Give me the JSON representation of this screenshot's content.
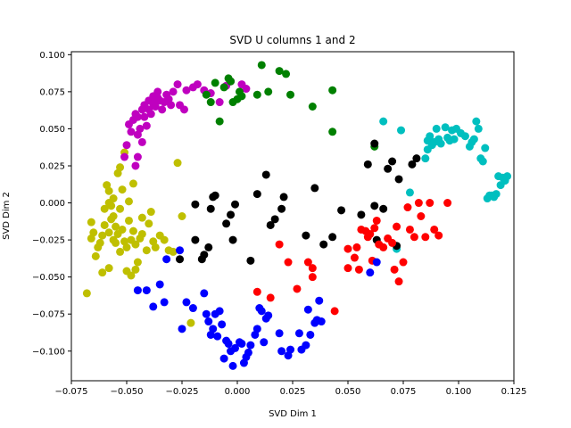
{
  "chart_data": {
    "type": "scatter",
    "title": "SVD U columns 1 and 2",
    "xlabel": "SVD Dim 1",
    "ylabel": "SVD Dim 2",
    "xlim": [
      -0.075,
      0.125
    ],
    "ylim": [
      -0.12,
      0.102
    ],
    "x_ticks": [
      -0.075,
      -0.05,
      -0.025,
      0.0,
      0.025,
      0.05,
      0.075,
      0.1,
      0.125
    ],
    "x_tick_labels": [
      "−0.075",
      "−0.050",
      "−0.025",
      "0.000",
      "0.025",
      "0.050",
      "0.075",
      "0.100",
      "0.125"
    ],
    "y_ticks": [
      -0.1,
      -0.075,
      -0.05,
      -0.025,
      0.0,
      0.025,
      0.05,
      0.075,
      0.1
    ],
    "y_tick_labels": [
      "−0.100",
      "−0.075",
      "−0.050",
      "−0.025",
      "0.000",
      "0.025",
      "0.050",
      "0.075",
      "0.100"
    ],
    "grid": false,
    "series": [
      {
        "color": "#bfbf00",
        "points": [
          [
            -0.068,
            -0.061
          ],
          [
            -0.066,
            -0.024
          ],
          [
            -0.066,
            -0.013
          ],
          [
            -0.065,
            -0.02
          ],
          [
            -0.064,
            -0.036
          ],
          [
            -0.063,
            -0.03
          ],
          [
            -0.062,
            -0.027
          ],
          [
            -0.061,
            -0.022
          ],
          [
            -0.061,
            -0.047
          ],
          [
            -0.06,
            -0.015
          ],
          [
            -0.06,
            -0.004
          ],
          [
            -0.059,
            0.012
          ],
          [
            -0.058,
            -0.02
          ],
          [
            -0.058,
            0.008
          ],
          [
            -0.058,
            0.0
          ],
          [
            -0.057,
            -0.011
          ],
          [
            -0.057,
            -0.002
          ],
          [
            -0.056,
            -0.025
          ],
          [
            -0.056,
            -0.009
          ],
          [
            -0.056,
            0.003
          ],
          [
            -0.055,
            -0.016
          ],
          [
            -0.055,
            -0.027
          ],
          [
            -0.054,
            -0.021
          ],
          [
            -0.054,
            0.02
          ],
          [
            -0.053,
            0.024
          ],
          [
            -0.053,
            -0.004
          ],
          [
            -0.053,
            -0.033
          ],
          [
            -0.052,
            -0.018
          ],
          [
            -0.052,
            0.009
          ],
          [
            -0.051,
            0.034
          ],
          [
            -0.051,
            -0.026
          ],
          [
            -0.05,
            -0.03
          ],
          [
            -0.05,
            -0.046
          ],
          [
            -0.049,
            -0.012
          ],
          [
            -0.049,
            0.001
          ],
          [
            -0.048,
            -0.049
          ],
          [
            -0.048,
            -0.025
          ],
          [
            -0.047,
            0.013
          ],
          [
            -0.047,
            -0.019
          ],
          [
            -0.046,
            -0.045
          ],
          [
            -0.046,
            -0.028
          ],
          [
            -0.045,
            -0.04
          ],
          [
            -0.044,
            -0.024
          ],
          [
            -0.043,
            -0.021
          ],
          [
            -0.043,
            -0.01
          ],
          [
            -0.041,
            -0.032
          ],
          [
            -0.04,
            -0.014
          ],
          [
            -0.039,
            -0.006
          ],
          [
            -0.038,
            -0.026
          ],
          [
            -0.037,
            -0.03
          ],
          [
            -0.035,
            -0.022
          ],
          [
            -0.033,
            -0.025
          ],
          [
            -0.031,
            -0.032
          ],
          [
            -0.029,
            -0.033
          ],
          [
            -0.027,
            0.027
          ],
          [
            -0.021,
            -0.081
          ],
          [
            -0.025,
            -0.009
          ],
          [
            -0.058,
            -0.044
          ]
        ]
      },
      {
        "color": "#bf00bf",
        "points": [
          [
            -0.051,
            0.031
          ],
          [
            -0.05,
            0.039
          ],
          [
            -0.049,
            0.053
          ],
          [
            -0.048,
            0.048
          ],
          [
            -0.047,
            0.056
          ],
          [
            -0.046,
            0.06
          ],
          [
            -0.045,
            0.058
          ],
          [
            -0.045,
            0.046
          ],
          [
            -0.044,
            0.05
          ],
          [
            -0.043,
            0.063
          ],
          [
            -0.043,
            0.041
          ],
          [
            -0.042,
            0.066
          ],
          [
            -0.042,
            0.058
          ],
          [
            -0.041,
            0.052
          ],
          [
            -0.04,
            0.069
          ],
          [
            -0.04,
            0.063
          ],
          [
            -0.039,
            0.06
          ],
          [
            -0.038,
            0.072
          ],
          [
            -0.038,
            0.067
          ],
          [
            -0.037,
            0.065
          ],
          [
            -0.036,
            0.071
          ],
          [
            -0.036,
            0.075
          ],
          [
            -0.035,
            0.069
          ],
          [
            -0.034,
            0.063
          ],
          [
            -0.033,
            0.068
          ],
          [
            -0.032,
            0.073
          ],
          [
            -0.031,
            0.07
          ],
          [
            -0.03,
            0.066
          ],
          [
            -0.029,
            0.075
          ],
          [
            -0.027,
            0.08
          ],
          [
            -0.026,
            0.066
          ],
          [
            -0.024,
            0.063
          ],
          [
            -0.023,
            0.076
          ],
          [
            -0.02,
            0.078
          ],
          [
            -0.018,
            0.08
          ],
          [
            -0.015,
            0.076
          ],
          [
            -0.012,
            0.074
          ],
          [
            -0.008,
            0.068
          ],
          [
            -0.005,
            0.079
          ],
          [
            -0.003,
            0.082
          ],
          [
            0.002,
            0.08
          ],
          [
            0.004,
            0.077
          ],
          [
            -0.045,
            0.031
          ],
          [
            -0.046,
            0.025
          ]
        ]
      },
      {
        "color": "#008000",
        "points": [
          [
            -0.014,
            0.073
          ],
          [
            -0.012,
            0.068
          ],
          [
            -0.01,
            0.081
          ],
          [
            -0.008,
            0.055
          ],
          [
            -0.006,
            0.078
          ],
          [
            -0.004,
            0.084
          ],
          [
            -0.003,
            0.082
          ],
          [
            -0.002,
            0.068
          ],
          [
            0.0,
            0.07
          ],
          [
            0.001,
            0.075
          ],
          [
            0.002,
            0.072
          ],
          [
            0.009,
            0.073
          ],
          [
            0.011,
            0.093
          ],
          [
            0.014,
            0.075
          ],
          [
            0.019,
            0.089
          ],
          [
            0.022,
            0.087
          ],
          [
            0.024,
            0.073
          ],
          [
            0.034,
            0.065
          ],
          [
            0.043,
            0.076
          ],
          [
            0.043,
            0.048
          ],
          [
            0.062,
            0.038
          ]
        ]
      },
      {
        "color": "#00bfbf",
        "points": [
          [
            0.066,
            0.055
          ],
          [
            0.074,
            0.049
          ],
          [
            0.072,
            -0.031
          ],
          [
            0.078,
            0.007
          ],
          [
            0.085,
            0.03
          ],
          [
            0.086,
            0.036
          ],
          [
            0.086,
            0.042
          ],
          [
            0.087,
            0.045
          ],
          [
            0.088,
            0.039
          ],
          [
            0.089,
            0.041
          ],
          [
            0.09,
            0.05
          ],
          [
            0.091,
            0.043
          ],
          [
            0.092,
            0.04
          ],
          [
            0.094,
            0.051
          ],
          [
            0.095,
            0.044
          ],
          [
            0.096,
            0.042
          ],
          [
            0.097,
            0.049
          ],
          [
            0.098,
            0.043
          ],
          [
            0.099,
            0.05
          ],
          [
            0.101,
            0.047
          ],
          [
            0.103,
            0.045
          ],
          [
            0.105,
            0.038
          ],
          [
            0.106,
            0.041
          ],
          [
            0.107,
            0.043
          ],
          [
            0.108,
            0.055
          ],
          [
            0.109,
            0.05
          ],
          [
            0.11,
            0.03
          ],
          [
            0.111,
            0.028
          ],
          [
            0.112,
            0.037
          ],
          [
            0.113,
            0.003
          ],
          [
            0.114,
            0.005
          ],
          [
            0.115,
            0.005
          ],
          [
            0.116,
            0.004
          ],
          [
            0.117,
            0.006
          ],
          [
            0.118,
            0.018
          ],
          [
            0.119,
            0.012
          ],
          [
            0.12,
            0.017
          ],
          [
            0.121,
            0.015
          ],
          [
            0.122,
            0.018
          ]
        ]
      },
      {
        "color": "#000000",
        "points": [
          [
            -0.026,
            -0.038
          ],
          [
            -0.019,
            -0.001
          ],
          [
            -0.019,
            -0.025
          ],
          [
            -0.016,
            -0.038
          ],
          [
            -0.015,
            -0.035
          ],
          [
            -0.013,
            -0.03
          ],
          [
            -0.012,
            -0.004
          ],
          [
            -0.011,
            0.004
          ],
          [
            -0.01,
            0.005
          ],
          [
            -0.005,
            -0.014
          ],
          [
            -0.003,
            -0.008
          ],
          [
            -0.002,
            -0.025
          ],
          [
            -0.001,
            -0.001
          ],
          [
            0.006,
            -0.039
          ],
          [
            0.009,
            0.006
          ],
          [
            0.013,
            0.019
          ],
          [
            0.015,
            -0.015
          ],
          [
            0.017,
            -0.011
          ],
          [
            0.02,
            -0.004
          ],
          [
            0.021,
            0.004
          ],
          [
            0.031,
            -0.022
          ],
          [
            0.035,
            0.01
          ],
          [
            0.039,
            -0.028
          ],
          [
            0.043,
            -0.023
          ],
          [
            0.047,
            -0.005
          ],
          [
            0.056,
            -0.008
          ],
          [
            0.059,
            0.026
          ],
          [
            0.062,
            0.04
          ],
          [
            0.062,
            -0.002
          ],
          [
            0.063,
            -0.025
          ],
          [
            0.068,
            0.023
          ],
          [
            0.07,
            0.028
          ],
          [
            0.073,
            0.016
          ],
          [
            0.072,
            -0.029
          ],
          [
            0.079,
            0.026
          ],
          [
            0.081,
            0.03
          ],
          [
            0.066,
            -0.004
          ]
        ]
      },
      {
        "color": "#ff0000",
        "points": [
          [
            0.009,
            -0.06
          ],
          [
            0.015,
            -0.064
          ],
          [
            0.019,
            -0.028
          ],
          [
            0.023,
            -0.04
          ],
          [
            0.027,
            -0.058
          ],
          [
            0.032,
            -0.04
          ],
          [
            0.034,
            -0.044
          ],
          [
            0.034,
            -0.05
          ],
          [
            0.044,
            -0.073
          ],
          [
            0.05,
            -0.031
          ],
          [
            0.05,
            -0.044
          ],
          [
            0.053,
            -0.037
          ],
          [
            0.054,
            -0.03
          ],
          [
            0.055,
            -0.045
          ],
          [
            0.056,
            -0.018
          ],
          [
            0.058,
            -0.019
          ],
          [
            0.059,
            -0.023
          ],
          [
            0.06,
            -0.021
          ],
          [
            0.061,
            -0.039
          ],
          [
            0.062,
            -0.017
          ],
          [
            0.063,
            -0.012
          ],
          [
            0.064,
            -0.028
          ],
          [
            0.066,
            -0.03
          ],
          [
            0.068,
            -0.024
          ],
          [
            0.07,
            -0.027
          ],
          [
            0.071,
            -0.045
          ],
          [
            0.072,
            -0.016
          ],
          [
            0.073,
            -0.053
          ],
          [
            0.075,
            -0.04
          ],
          [
            0.077,
            -0.003
          ],
          [
            0.078,
            -0.018
          ],
          [
            0.08,
            -0.023
          ],
          [
            0.082,
            0.0
          ],
          [
            0.083,
            -0.009
          ],
          [
            0.085,
            -0.023
          ],
          [
            0.087,
            0.0
          ],
          [
            0.089,
            -0.018
          ],
          [
            0.091,
            -0.022
          ],
          [
            0.095,
            0.0
          ]
        ]
      },
      {
        "color": "#0000ff",
        "points": [
          [
            -0.045,
            -0.059
          ],
          [
            -0.041,
            -0.059
          ],
          [
            -0.038,
            -0.07
          ],
          [
            -0.035,
            -0.055
          ],
          [
            -0.033,
            -0.067
          ],
          [
            -0.032,
            -0.038
          ],
          [
            -0.026,
            -0.032
          ],
          [
            -0.025,
            -0.085
          ],
          [
            -0.023,
            -0.067
          ],
          [
            -0.02,
            -0.071
          ],
          [
            -0.015,
            -0.061
          ],
          [
            -0.014,
            -0.075
          ],
          [
            -0.013,
            -0.08
          ],
          [
            -0.012,
            -0.089
          ],
          [
            -0.011,
            -0.085
          ],
          [
            -0.01,
            -0.075
          ],
          [
            -0.009,
            -0.09
          ],
          [
            -0.008,
            -0.073
          ],
          [
            -0.007,
            -0.082
          ],
          [
            -0.006,
            -0.105
          ],
          [
            -0.005,
            -0.093
          ],
          [
            -0.004,
            -0.095
          ],
          [
            -0.003,
            -0.1
          ],
          [
            -0.002,
            -0.11
          ],
          [
            -0.001,
            -0.098
          ],
          [
            0.001,
            -0.094
          ],
          [
            0.002,
            -0.095
          ],
          [
            0.003,
            -0.108
          ],
          [
            0.004,
            -0.104
          ],
          [
            0.005,
            -0.101
          ],
          [
            0.006,
            -0.096
          ],
          [
            0.008,
            -0.089
          ],
          [
            0.009,
            -0.085
          ],
          [
            0.01,
            -0.071
          ],
          [
            0.011,
            -0.073
          ],
          [
            0.012,
            -0.094
          ],
          [
            0.013,
            -0.078
          ],
          [
            0.014,
            -0.076
          ],
          [
            0.019,
            -0.088
          ],
          [
            0.02,
            -0.1
          ],
          [
            0.023,
            -0.103
          ],
          [
            0.024,
            -0.099
          ],
          [
            0.028,
            -0.088
          ],
          [
            0.029,
            -0.099
          ],
          [
            0.031,
            -0.096
          ],
          [
            0.032,
            -0.072
          ],
          [
            0.033,
            -0.089
          ],
          [
            0.035,
            -0.081
          ],
          [
            0.036,
            -0.079
          ],
          [
            0.037,
            -0.066
          ],
          [
            0.038,
            -0.08
          ],
          [
            0.06,
            -0.047
          ],
          [
            0.063,
            -0.04
          ]
        ]
      }
    ]
  }
}
